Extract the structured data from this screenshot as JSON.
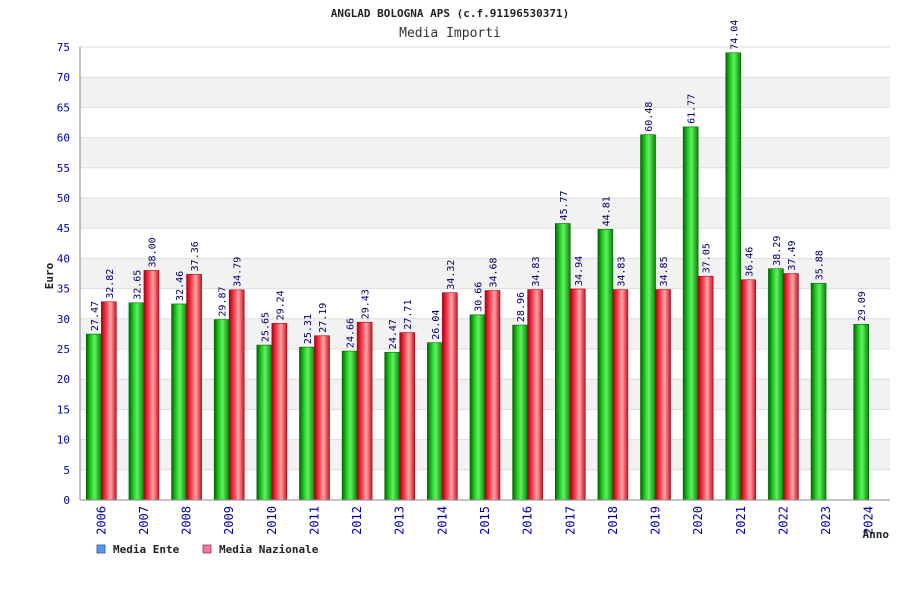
{
  "chart_data": {
    "type": "bar",
    "title": "ANGLAD BOLOGNA APS (c.f.91196530371)",
    "subtitle": "Media Importi",
    "xlabel": "Anno",
    "ylabel": "Euro",
    "ylim": [
      0,
      75
    ],
    "ytick_step": 5,
    "categories": [
      "2006",
      "2007",
      "2008",
      "2009",
      "2010",
      "2011",
      "2012",
      "2013",
      "2014",
      "2015",
      "2016",
      "2017",
      "2018",
      "2019",
      "2020",
      "2021",
      "2022",
      "2023",
      "2024"
    ],
    "series": [
      {
        "name": "Media Ente",
        "color": "#00aa00",
        "values": [
          27.47,
          32.65,
          32.46,
          29.87,
          25.65,
          25.31,
          24.66,
          24.47,
          26.04,
          30.66,
          28.96,
          45.77,
          44.81,
          60.48,
          61.77,
          74.04,
          38.29,
          35.88,
          29.09
        ],
        "labels": [
          "27.47",
          "32.65",
          "32.46",
          "29.87",
          "25.65",
          "25.31",
          "24.66",
          "24.47",
          "26.04",
          "30.66",
          "28.96",
          "45.77",
          "44.81",
          "60.48",
          "61.77",
          "74.04",
          "38.29",
          "35.88",
          "29.09"
        ]
      },
      {
        "name": "Media Nazionale",
        "color": "#dd2233",
        "values": [
          32.82,
          38.0,
          37.36,
          34.79,
          29.24,
          27.19,
          29.43,
          27.71,
          34.32,
          34.68,
          34.83,
          34.94,
          34.83,
          34.85,
          37.05,
          36.46,
          37.49,
          null,
          null
        ],
        "labels": [
          "32.82",
          "38.00",
          "37.36",
          "34.79",
          "29.24",
          "27.19",
          "29.43",
          "27.71",
          "34.32",
          "34.68",
          "34.83",
          "34.94",
          "34.83",
          "34.85",
          "37.05",
          "36.46",
          "37.49",
          null,
          null
        ]
      }
    ],
    "legend": [
      {
        "label": "Media Ente",
        "color": "#5599ee"
      },
      {
        "label": "Media Nazionale",
        "color": "#ee77aa"
      }
    ],
    "grid": true,
    "legend_position": "bottom-left"
  }
}
